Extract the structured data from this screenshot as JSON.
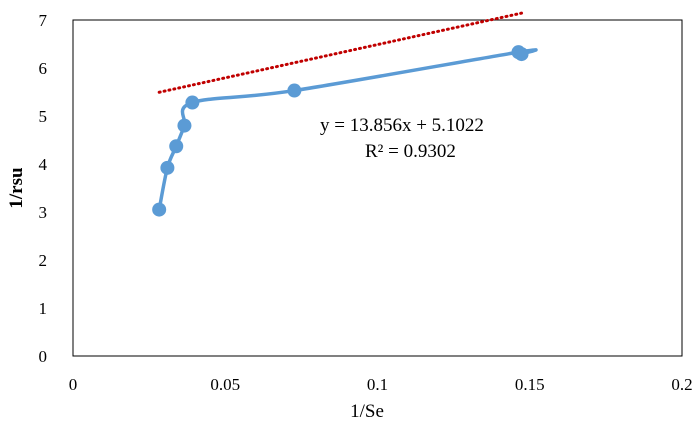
{
  "chart_data": {
    "type": "scatter",
    "xlabel": "1/Se",
    "ylabel": "1/rsu",
    "xlim": [
      0,
      0.2
    ],
    "ylim": [
      0,
      7
    ],
    "xticks": [
      "0",
      "0.05",
      "0.1",
      "0.15",
      "0.2"
    ],
    "yticks": [
      "0",
      "1",
      "2",
      "3",
      "4",
      "5",
      "6",
      "7"
    ],
    "grid": false,
    "legend": "none",
    "series": [
      {
        "color": "#5b9bd5",
        "style": "smooth-line-with-markers",
        "x": [
          0.0283,
          0.031,
          0.0339,
          0.0366,
          0.0392,
          0.0727,
          0.1463,
          0.1473
        ],
        "y": [
          3.05,
          3.92,
          4.37,
          4.8,
          5.28,
          5.53,
          6.33,
          6.29
        ]
      }
    ],
    "trendline": {
      "type": "linear",
      "color": "#c00000",
      "style": "dotted",
      "slope": 13.856,
      "intercept": 5.1022,
      "x_range": [
        0.0283,
        0.1473
      ]
    },
    "annotations": {
      "equation": "y = 13.856x + 5.1022",
      "r_squared": "R² = 0.9302"
    }
  }
}
